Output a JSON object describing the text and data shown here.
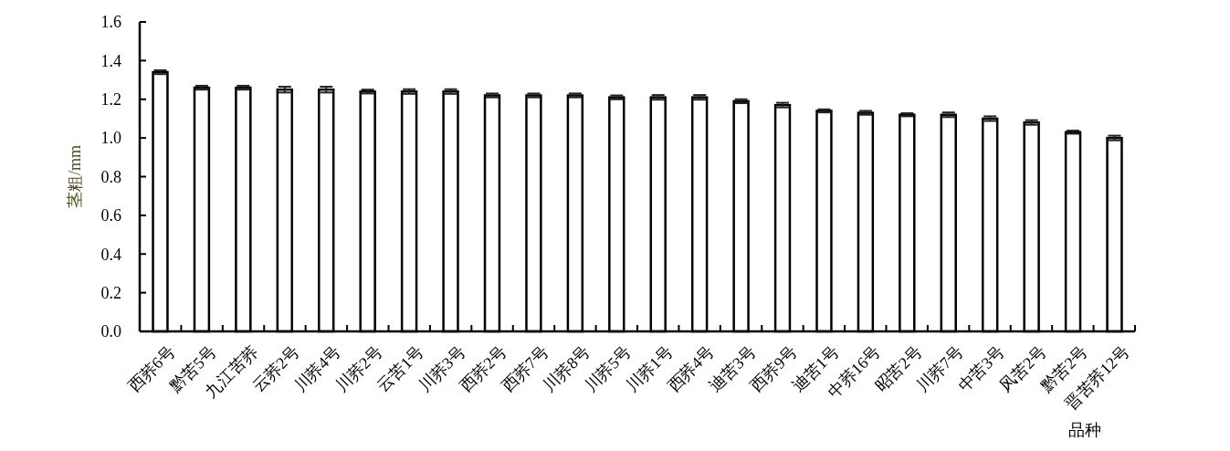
{
  "chart_data": {
    "type": "bar",
    "xlabel": "品种",
    "ylabel": "茎粗/mm",
    "categories": [
      "西荞6号",
      "黔苦5号",
      "九江苦荞",
      "云荞2号",
      "川荞4号",
      "川荞2号",
      "云苦1号",
      "川荞3号",
      "西荞2号",
      "西荞7号",
      "川荞8号",
      "川荞5号",
      "川荞1号",
      "西荞4号",
      "迪苦3号",
      "西荞9号",
      "迪苦1号",
      "中荞16号",
      "昭苦2号",
      "川荞7号",
      "中苦3号",
      "风苦2号",
      "黔苦2号",
      "晋苦荞12号"
    ],
    "series": [
      {
        "color": "#ffffff",
        "values": [
          1.34,
          1.26,
          1.26,
          1.25,
          1.25,
          1.24,
          1.24,
          1.24,
          1.22,
          1.22,
          1.22,
          1.21,
          1.21,
          1.21,
          1.19,
          1.17,
          1.14,
          1.13,
          1.12,
          1.12,
          1.1,
          1.08,
          1.03,
          1.0
        ],
        "errors": [
          0.01,
          0.01,
          0.01,
          0.015,
          0.015,
          0.01,
          0.012,
          0.012,
          0.01,
          0.01,
          0.01,
          0.01,
          0.012,
          0.012,
          0.01,
          0.012,
          0.008,
          0.01,
          0.008,
          0.012,
          0.012,
          0.012,
          0.008,
          0.012
        ]
      }
    ],
    "ylim": [
      0,
      1.6
    ],
    "yticks": [
      {
        "value": 0,
        "label": "0.0"
      },
      {
        "value": 0.2,
        "label": "0.2"
      },
      {
        "value": 0.4,
        "label": "0.4"
      },
      {
        "value": 0.6,
        "label": "0.6"
      },
      {
        "value": 0.8,
        "label": "0.8"
      },
      {
        "value": 1.0,
        "label": "1.0"
      },
      {
        "value": 1.2,
        "label": "1.2"
      },
      {
        "value": 1.4,
        "label": "1.4"
      },
      {
        "value": 1.6,
        "label": "1.6"
      }
    ]
  }
}
